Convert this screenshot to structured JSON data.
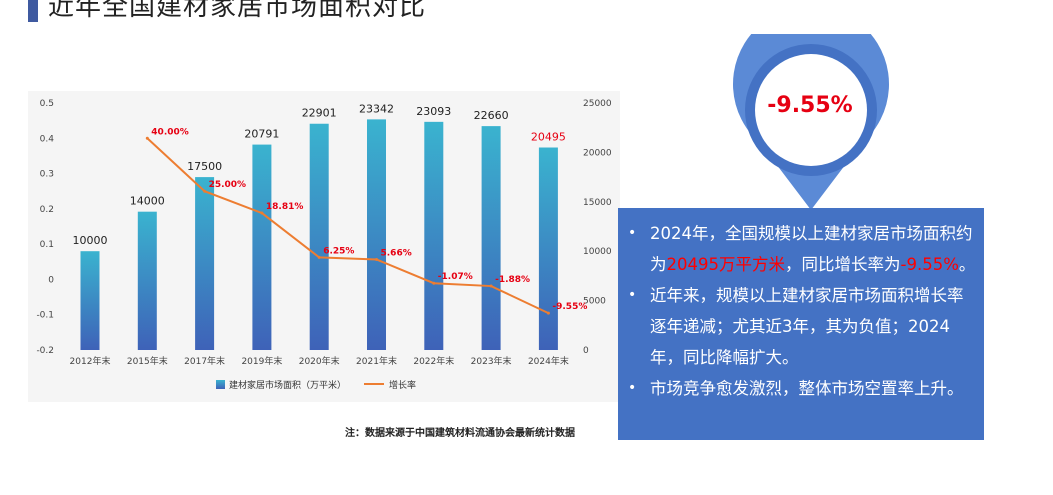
{
  "page": {
    "title": "近年全国建材家居市场面积对比",
    "note": "注：数据来源于中国建筑材料流通协会最新统计数据"
  },
  "callout": {
    "value": "-9.55%"
  },
  "info": {
    "bullet": "•",
    "item1": {
      "text1": "2024年，全国规模以上建材家居市场面积约为",
      "highlight1": "20495万平方米",
      "text2": "，同比增长率为",
      "highlight2": "-9.55%",
      "text3": "。"
    },
    "item2": "近年来，规模以上建材家居市场面积增长率逐年递减；尤其近3年，其为负值；2024年，同比降幅扩大。",
    "item3": "市场竞争愈发激烈，整体市场空置率上升。"
  },
  "colors": {
    "bar_top": "#3ab3cf",
    "bar_bottom": "#3e62b8",
    "line": "#ed7d31",
    "line_label": "#e60012",
    "info_bg": "#4472c4",
    "accent": "#4472c4"
  },
  "chart_data": {
    "type": "bar",
    "categories": [
      "2012年末",
      "2015年末",
      "2017年末",
      "2019年末",
      "2020年末",
      "2021年末",
      "2022年末",
      "2023年末",
      "2024年末"
    ],
    "series": [
      {
        "name": "建材家居市场面积（万平米）",
        "type": "bar",
        "axis": "right",
        "values": [
          10000,
          14000,
          17500,
          20791,
          22901,
          23342,
          23093,
          22660,
          20495
        ]
      },
      {
        "name": "增长率",
        "type": "line",
        "axis": "left",
        "values": [
          null,
          0.4,
          0.25,
          0.1881,
          0.0625,
          0.0566,
          -0.0107,
          -0.0188,
          -0.0955
        ],
        "labels": [
          "",
          "40.00%",
          "25.00%",
          "18.81%",
          "6.25%",
          "5.66%",
          "-1.07%",
          "-1.88%",
          "-9.55%"
        ]
      }
    ],
    "y_left": {
      "min": -0.2,
      "max": 0.5,
      "ticks": [
        "0.5",
        "0.4",
        "0.3",
        "0.2",
        "0.1",
        "0",
        "-0.1",
        "-0.2"
      ]
    },
    "y_right": {
      "min": 0,
      "max": 25000,
      "ticks": [
        "25000",
        "20000",
        "15000",
        "10000",
        "5000",
        "0"
      ]
    },
    "legend": {
      "position": "bottom"
    },
    "grid": false
  }
}
